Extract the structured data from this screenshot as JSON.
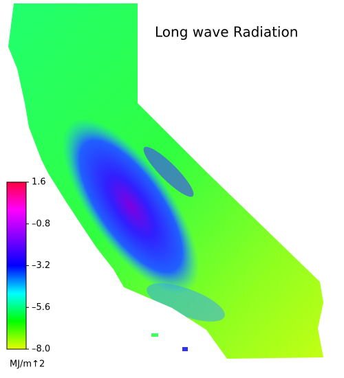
{
  "map": {
    "title": "Long wave Radiation",
    "colorbar": {
      "lim": [
        -8.0,
        1.6
      ],
      "ticks": [
        {
          "value": 1.6,
          "label": "1.6"
        },
        {
          "value": -0.8,
          "label": "–0.8"
        },
        {
          "value": -3.2,
          "label": "–3.2"
        },
        {
          "value": -5.6,
          "label": "–5.6"
        },
        {
          "value": -8.0,
          "label": "–8.0"
        }
      ],
      "colors": [
        "#e8ff00",
        "#00ff00",
        "#00ffff",
        "#0000ff",
        "#8000ff",
        "#ff00ff",
        "#ff0040"
      ],
      "unit": "MJ/m↑2"
    }
  }
}
